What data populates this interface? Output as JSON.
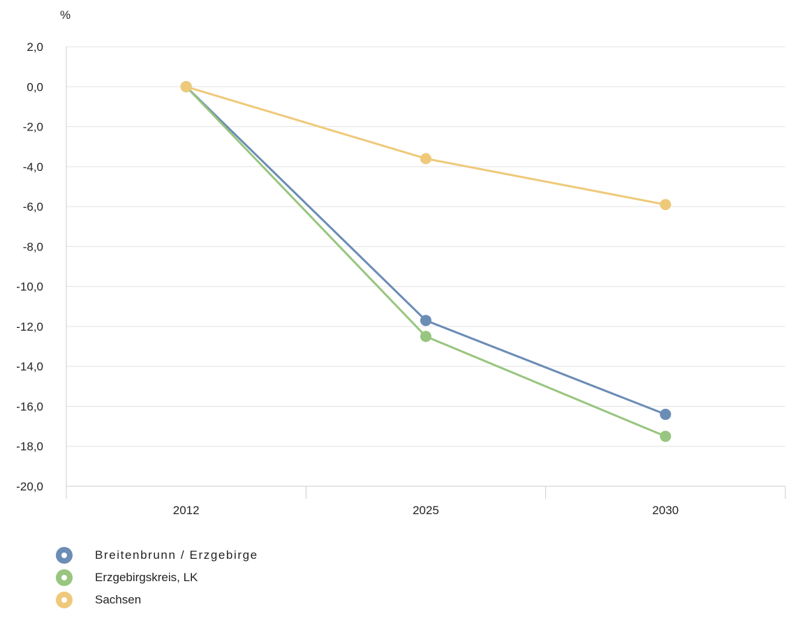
{
  "chart_data": {
    "type": "line",
    "unit_label": "%",
    "categories": [
      "2012",
      "2025",
      "2030"
    ],
    "ylim": [
      -20,
      2
    ],
    "yticks": [
      2,
      0,
      -2,
      -4,
      -6,
      -8,
      -10,
      -12,
      -14,
      -16,
      -18,
      -20
    ],
    "ytick_labels": [
      "2,0",
      "0,0",
      "-2,0",
      "-4,0",
      "-6,0",
      "-8,0",
      "-10,0",
      "-12,0",
      "-14,0",
      "-16,0",
      "-18,0",
      "-20,0"
    ],
    "grid": true,
    "legend_position": "bottom-left",
    "series": [
      {
        "name": "Breitenbrunn / Erzgebirge",
        "values": [
          0.0,
          -11.7,
          -16.4
        ],
        "color": "#6b8cb5"
      },
      {
        "name": "Erzgebirgskreis, LK",
        "values": [
          0.0,
          -12.5,
          -17.5
        ],
        "color": "#98c57f"
      },
      {
        "name": "Sachsen",
        "values": [
          0.0,
          -3.6,
          -5.9
        ],
        "color": "#efc97a"
      }
    ]
  }
}
